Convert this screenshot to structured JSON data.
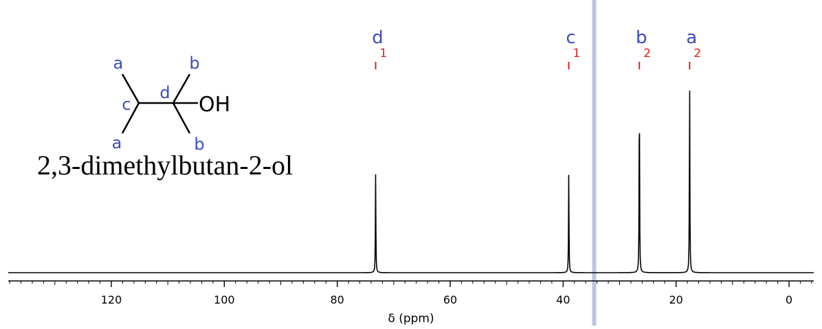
{
  "chart_data": {
    "type": "line",
    "title": "",
    "compound": "2,3-dimethylbutan-2-ol",
    "xlabel": "δ (ppm)",
    "ylabel": "",
    "x_reversed": true,
    "xlim": [
      140,
      0
    ],
    "major_ticks": [
      120,
      100,
      80,
      60,
      40,
      20,
      0
    ],
    "minor_tick_step": 2,
    "cursor_ppm": 34.5,
    "peaks": [
      {
        "ppm": 73.2,
        "height": 0.5,
        "label": "d",
        "integral": "1"
      },
      {
        "ppm": 39.0,
        "height": 0.5,
        "label": "c",
        "integral": "1"
      },
      {
        "ppm": 26.5,
        "height": 1.0,
        "label": "b",
        "integral": "2"
      },
      {
        "ppm": 17.6,
        "height": 1.0,
        "label": "a",
        "integral": "2"
      }
    ],
    "structure": {
      "atom_labels": [
        "a",
        "a",
        "c",
        "d",
        "b",
        "b"
      ],
      "group": "OH"
    },
    "colors": {
      "spectrum": "#000000",
      "peak_label": "#3b4cc0",
      "integral": "#e02020",
      "cursor": "#aab0d8"
    }
  }
}
